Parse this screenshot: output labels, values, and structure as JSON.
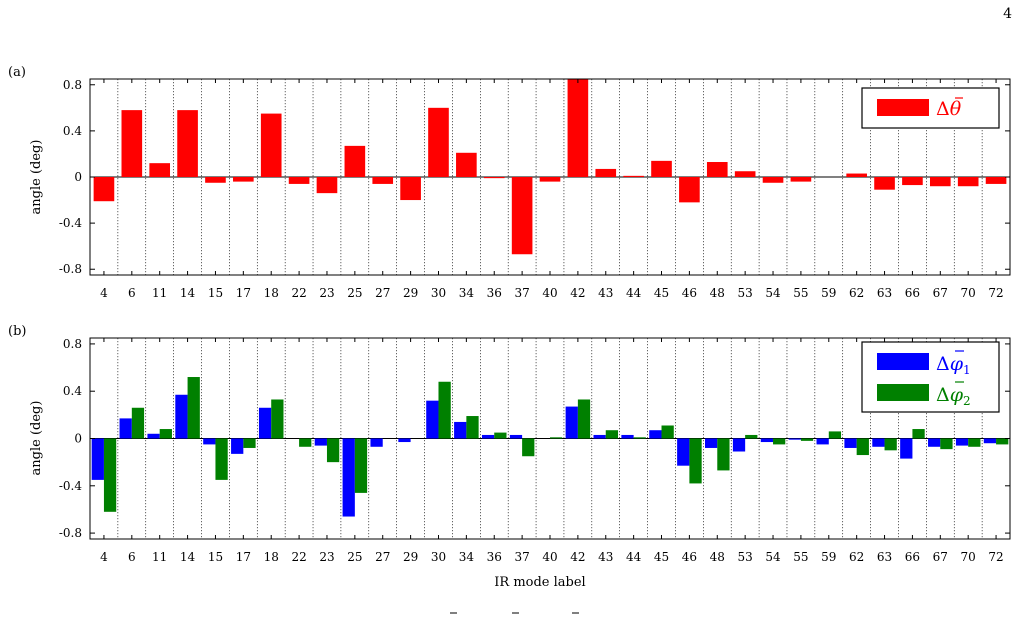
{
  "page_number": "4",
  "chart_data": [
    {
      "type": "bar",
      "panel_label": "(a)",
      "ylabel": "angle (deg)",
      "xlabel": "",
      "ylim": [
        -0.85,
        0.85
      ],
      "yticks": [
        "0.8",
        "0.4",
        "0",
        "-0.4",
        "-0.8"
      ],
      "ytick_values": [
        0.8,
        0.4,
        0,
        -0.4,
        -0.8
      ],
      "grid": "vertical dotted lines between categories",
      "legend": "top-right",
      "categories": [
        "4",
        "6",
        "11",
        "14",
        "15",
        "17",
        "18",
        "22",
        "23",
        "25",
        "27",
        "29",
        "30",
        "34",
        "36",
        "37",
        "40",
        "42",
        "43",
        "44",
        "45",
        "46",
        "48",
        "53",
        "54",
        "55",
        "59",
        "62",
        "63",
        "66",
        "67",
        "70",
        "72"
      ],
      "series": [
        {
          "name": "Δθ̄",
          "legend_symbol": "theta-bar",
          "color": "#ff0000",
          "values": [
            -0.21,
            0.58,
            0.12,
            0.58,
            -0.05,
            -0.04,
            0.55,
            -0.06,
            -0.14,
            0.27,
            -0.06,
            -0.2,
            0.6,
            0.21,
            -0.01,
            -0.67,
            -0.04,
            0.88,
            0.07,
            0.01,
            0.14,
            -0.22,
            0.13,
            0.05,
            -0.05,
            -0.04,
            0.0,
            0.03,
            -0.11,
            -0.07,
            -0.08,
            -0.08,
            -0.06
          ]
        }
      ]
    },
    {
      "type": "bar",
      "panel_label": "(b)",
      "ylabel": "angle (deg)",
      "xlabel": "IR mode label",
      "ylim": [
        -0.85,
        0.85
      ],
      "yticks": [
        "0.8",
        "0.4",
        "0",
        "-0.4",
        "-0.8"
      ],
      "ytick_values": [
        0.8,
        0.4,
        0,
        -0.4,
        -0.8
      ],
      "grid": "vertical dotted lines between categories",
      "legend": "top-right",
      "categories": [
        "4",
        "6",
        "11",
        "14",
        "15",
        "17",
        "18",
        "22",
        "23",
        "25",
        "27",
        "29",
        "30",
        "34",
        "36",
        "37",
        "40",
        "42",
        "43",
        "44",
        "45",
        "46",
        "48",
        "53",
        "54",
        "55",
        "59",
        "62",
        "63",
        "66",
        "67",
        "70",
        "72"
      ],
      "series": [
        {
          "name": "Δφ̄₁",
          "legend_symbol": "phi-bar-1",
          "color": "#0000ff",
          "values": [
            -0.35,
            0.17,
            0.04,
            0.37,
            -0.05,
            -0.13,
            0.26,
            0.0,
            -0.06,
            -0.66,
            -0.07,
            -0.03,
            0.32,
            0.14,
            0.03,
            0.03,
            0.0,
            0.27,
            0.03,
            0.03,
            0.07,
            -0.23,
            -0.08,
            -0.11,
            -0.03,
            -0.01,
            -0.05,
            -0.08,
            -0.07,
            -0.17,
            -0.07,
            -0.06,
            -0.04
          ]
        },
        {
          "name": "Δφ̄₂",
          "legend_symbol": "phi-bar-2",
          "color": "#008000",
          "values": [
            -0.62,
            0.26,
            0.08,
            0.52,
            -0.35,
            -0.08,
            0.33,
            -0.07,
            -0.2,
            -0.46,
            0.0,
            0.0,
            0.48,
            0.19,
            0.05,
            -0.15,
            0.01,
            0.33,
            0.07,
            0.01,
            0.11,
            -0.38,
            -0.27,
            0.03,
            -0.05,
            -0.02,
            0.06,
            -0.14,
            -0.1,
            0.08,
            -0.09,
            -0.07,
            -0.05
          ]
        }
      ]
    }
  ]
}
